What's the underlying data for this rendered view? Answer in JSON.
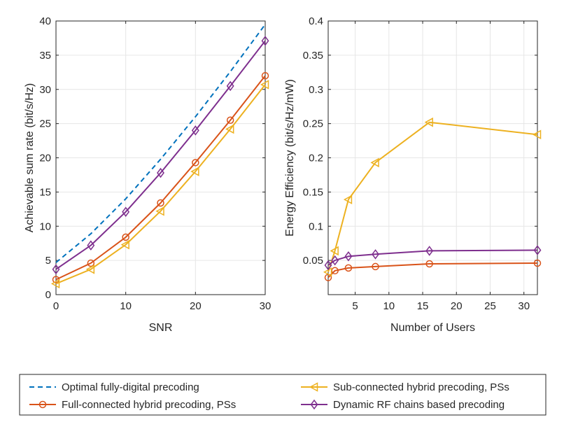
{
  "colors": {
    "optimal": "#0072BD",
    "full": "#D95319",
    "sub": "#EDB120",
    "dynamic": "#7E2F8E",
    "axis": "#262626",
    "grid": "#e6e6e6"
  },
  "legend": {
    "items": [
      {
        "key": "optimal",
        "label": "Optimal fully-digital precoding",
        "icon": "dashed-line-icon"
      },
      {
        "key": "sub",
        "label": "Sub-connected hybrid precoding, PSs",
        "icon": "triangle-left-marker-icon"
      },
      {
        "key": "full",
        "label": "Full-connected hybrid precoding, PSs",
        "icon": "circle-marker-icon"
      },
      {
        "key": "dynamic",
        "label": "Dynamic RF chains based precoding",
        "icon": "diamond-marker-icon"
      }
    ]
  },
  "chart_data": [
    {
      "type": "line",
      "title": "",
      "xlabel": "SNR",
      "ylabel": "Achievable sum rate (bit/s/Hz)",
      "xlim": [
        0,
        30
      ],
      "ylim": [
        0,
        40
      ],
      "xticks": [
        0,
        10,
        20,
        30
      ],
      "yticks": [
        0,
        5,
        10,
        15,
        20,
        25,
        30,
        35,
        40
      ],
      "grid": true,
      "x": [
        0,
        5,
        10,
        15,
        20,
        25,
        30
      ],
      "series": [
        {
          "name": "Optimal fully-digital precoding",
          "key": "optimal",
          "style": "dashed",
          "marker": "none",
          "values": [
            4.7,
            8.9,
            14.0,
            19.8,
            26.0,
            32.6,
            39.5
          ]
        },
        {
          "name": "Full-connected hybrid precoding, PSs",
          "key": "full",
          "style": "solid",
          "marker": "circle",
          "values": [
            2.2,
            4.6,
            8.4,
            13.4,
            19.3,
            25.5,
            32.0
          ]
        },
        {
          "name": "Sub-connected hybrid precoding, PSs",
          "key": "sub",
          "style": "solid",
          "marker": "triangle-left",
          "values": [
            1.6,
            3.7,
            7.3,
            12.2,
            18.0,
            24.2,
            30.7
          ]
        },
        {
          "name": "Dynamic RF chains based precoding",
          "key": "dynamic",
          "style": "solid",
          "marker": "diamond",
          "values": [
            3.7,
            7.2,
            12.1,
            17.8,
            24.0,
            30.5,
            37.1
          ]
        }
      ]
    },
    {
      "type": "line",
      "title": "",
      "xlabel": "Number of Users",
      "ylabel": "Energy Efficiency (bit/s/Hz/mW)",
      "xlim": [
        1,
        32
      ],
      "ylim": [
        0,
        0.4
      ],
      "xticks": [
        5,
        10,
        15,
        20,
        25,
        30
      ],
      "yticks": [
        0.05,
        0.1,
        0.15,
        0.2,
        0.25,
        0.3,
        0.35,
        0.4
      ],
      "grid": true,
      "x": [
        1,
        2,
        4,
        8,
        16,
        32
      ],
      "series": [
        {
          "name": "Full-connected hybrid precoding, PSs",
          "key": "full",
          "style": "solid",
          "marker": "circle",
          "values": [
            0.025,
            0.035,
            0.039,
            0.041,
            0.045,
            0.046
          ]
        },
        {
          "name": "Sub-connected hybrid precoding, PSs",
          "key": "sub",
          "style": "solid",
          "marker": "triangle-left",
          "values": [
            0.033,
            0.064,
            0.139,
            0.193,
            0.252,
            0.234
          ]
        },
        {
          "name": "Dynamic RF chains based precoding",
          "key": "dynamic",
          "style": "solid",
          "marker": "diamond",
          "values": [
            0.043,
            0.05,
            0.056,
            0.059,
            0.064,
            0.065
          ]
        }
      ]
    }
  ]
}
